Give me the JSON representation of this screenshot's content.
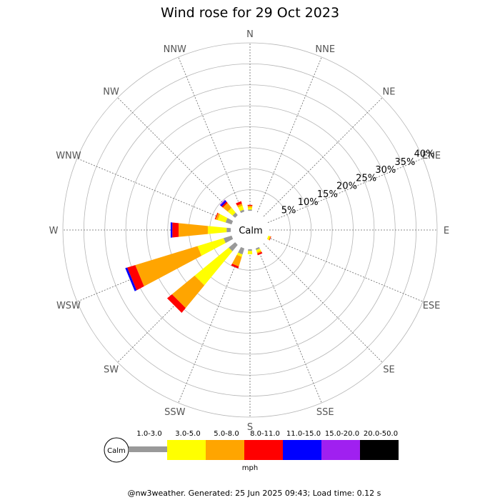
{
  "chart_data": {
    "type": "wind_rose",
    "title": "Wind rose for 29 Oct 2023",
    "calm_label": "Calm",
    "directions": [
      "N",
      "NNE",
      "NE",
      "ENE",
      "E",
      "ESE",
      "SE",
      "SSE",
      "S",
      "SSW",
      "SW",
      "WSW",
      "W",
      "WNW",
      "NW",
      "NNW"
    ],
    "ring_labels": [
      "5%",
      "10%",
      "15%",
      "20%",
      "25%",
      "30%",
      "35%",
      "40%"
    ],
    "rmax_pct": 40,
    "units": "mph",
    "bins": [
      {
        "label": "1.0-3.0",
        "color": "#999999"
      },
      {
        "label": "3.0-5.0",
        "color": "#ffff00"
      },
      {
        "label": "5.0-8.0",
        "color": "#ffa500"
      },
      {
        "label": "8.0-11.0",
        "color": "#ff0000"
      },
      {
        "label": "11.0-15.0",
        "color": "#0000ff"
      },
      {
        "label": "15.0-20.0",
        "color": "#a020f0"
      },
      {
        "label": "20.0-50.0",
        "color": "#000000"
      }
    ],
    "frequencies": {
      "N": [
        0.3,
        0.5,
        0.4,
        0.2,
        0,
        0,
        0
      ],
      "NNE": [
        0,
        0,
        0,
        0,
        0,
        0,
        0
      ],
      "NE": [
        0,
        0,
        0,
        0,
        0,
        0,
        0
      ],
      "ENE": [
        0,
        0,
        0,
        0,
        0,
        0,
        0
      ],
      "E": [
        0,
        0,
        0,
        0,
        0,
        0,
        0
      ],
      "ESE": [
        0,
        0.4,
        0.2,
        0.1,
        0,
        0,
        0
      ],
      "SE": [
        0,
        0,
        0,
        0,
        0,
        0,
        0
      ],
      "SSE": [
        0.4,
        0.6,
        0.3,
        0.4,
        0,
        0,
        0
      ],
      "S": [
        0.4,
        0.8,
        0,
        0,
        0,
        0,
        0
      ],
      "SSW": [
        1.5,
        0.6,
        2.4,
        0.5,
        0,
        0,
        0
      ],
      "SW": [
        2.0,
        10.5,
        7.0,
        1.5,
        0,
        0,
        0
      ],
      "WSW": [
        2.0,
        6.5,
        15.5,
        2.0,
        0.5,
        0,
        0
      ],
      "W": [
        1.0,
        4.5,
        7.0,
        1.5,
        0.4,
        0,
        0
      ],
      "WNW": [
        1.5,
        2.0,
        0.5,
        0.2,
        0,
        0,
        0
      ],
      "NW": [
        0.8,
        1.5,
        1.5,
        0.4,
        0.4,
        0.2,
        0
      ],
      "NNW": [
        0.5,
        1.0,
        0.5,
        0.6,
        0,
        0,
        0
      ]
    }
  },
  "footer": "@nw3weather. Generated: 25 Jun 2025 09:43; Load time: 0.12 s"
}
